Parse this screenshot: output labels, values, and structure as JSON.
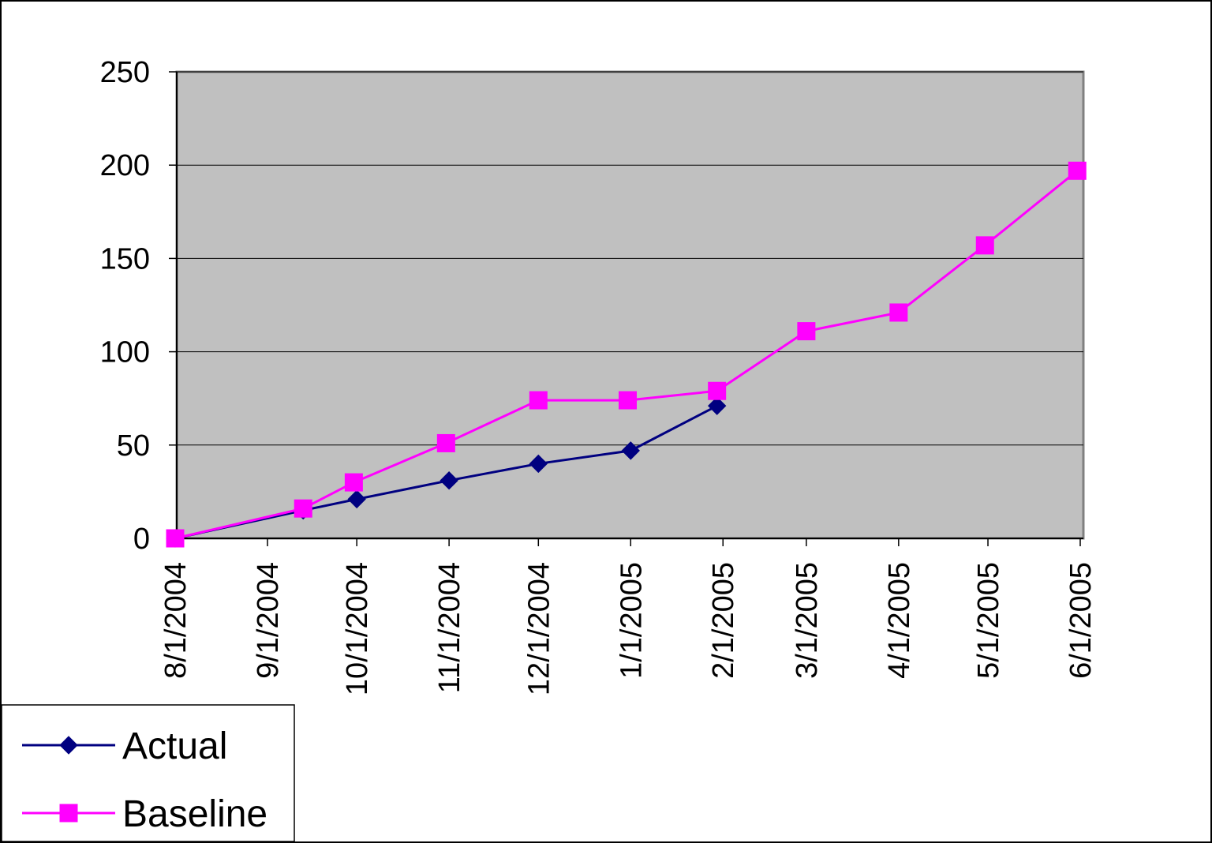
{
  "chart_data": {
    "type": "line",
    "title": "",
    "xlabel": "",
    "ylabel": "",
    "x": [
      "8/1/2004",
      "9/1/2004",
      "10/1/2004",
      "11/1/2004",
      "12/1/2004",
      "1/1/2005",
      "2/1/2005",
      "3/1/2005",
      "4/1/2005",
      "5/1/2005",
      "6/1/2005"
    ],
    "ylim": [
      0,
      250
    ],
    "yticks": [
      "0",
      "50",
      "100",
      "150",
      "200",
      "250"
    ],
    "grid": true,
    "legend_position": "bottom-left",
    "plot_background": "#C0C0C0",
    "series": [
      {
        "name": "Actual",
        "color": "#000080",
        "marker": "diamond",
        "points": [
          {
            "date": "2004-08-01",
            "value": 0
          },
          {
            "date": "2004-09-13",
            "value": 15
          },
          {
            "date": "2004-10-01",
            "value": 21
          },
          {
            "date": "2004-11-01",
            "value": 31
          },
          {
            "date": "2004-12-01",
            "value": 40
          },
          {
            "date": "2005-01-01",
            "value": 47
          },
          {
            "date": "2005-01-30",
            "value": 71
          }
        ]
      },
      {
        "name": "Baseline",
        "color": "#FF00FF",
        "marker": "square",
        "points": [
          {
            "date": "2004-08-01",
            "value": 0
          },
          {
            "date": "2004-09-13",
            "value": 16
          },
          {
            "date": "2004-09-30",
            "value": 30
          },
          {
            "date": "2004-10-31",
            "value": 51
          },
          {
            "date": "2004-12-01",
            "value": 74
          },
          {
            "date": "2004-12-31",
            "value": 74
          },
          {
            "date": "2005-01-30",
            "value": 79
          },
          {
            "date": "2005-03-01",
            "value": 111
          },
          {
            "date": "2005-04-01",
            "value": 121
          },
          {
            "date": "2005-04-30",
            "value": 157
          },
          {
            "date": "2005-05-31",
            "value": 197
          }
        ]
      }
    ]
  }
}
